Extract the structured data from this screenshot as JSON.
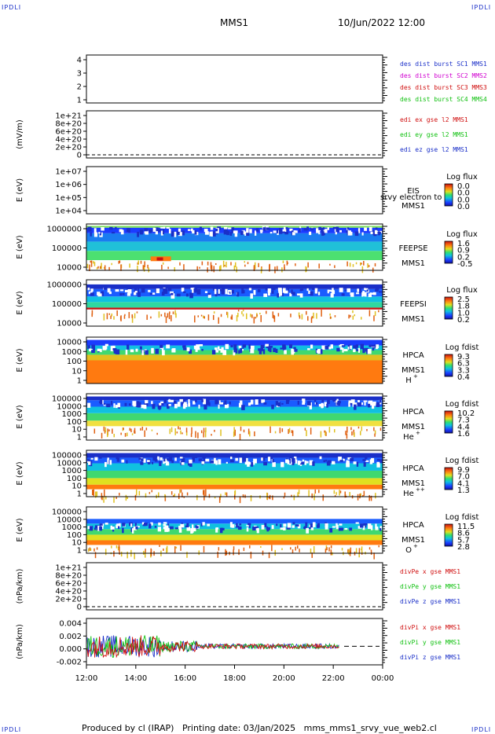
{
  "page": {
    "corner_left_top": "IPDLI",
    "corner_right_top": "IPDLI",
    "corner_left_bottom": "IPDLI",
    "corner_right_bottom": "IPDLI",
    "spacecraft": "MMS1",
    "datetime": "10/Jun/2022 12:00",
    "footer": "Produced by cl (IRAP)   Printing date: 03/Jan/2025   mms_mms1_srvy_vue_web2.cl"
  },
  "chart_data": [
    {
      "type": "line",
      "id": "p1",
      "yticks": [
        "4",
        "3",
        "2",
        "1"
      ],
      "legend": [
        {
          "text": "des dist burst SC1 MMS1",
          "color": "#1a2fc8"
        },
        {
          "text": "des dist burst SC2 MMS2",
          "color": "#d000d0"
        },
        {
          "text": "des dist burst SC3 MMS3",
          "color": "#d01010"
        },
        {
          "text": "des dist burst SC4 MMS4",
          "color": "#10c010"
        }
      ]
    },
    {
      "type": "line",
      "id": "p2",
      "ylabel": "(mV/m)",
      "yticks": [
        "1e+21",
        "8e+20",
        "6e+20",
        "4e+20",
        "2e+20",
        "0"
      ],
      "legend": [
        {
          "text": "edi ex gse l2 MMS1",
          "color": "#d01010"
        },
        {
          "text": "edi ey gse l2 MMS1",
          "color": "#10c010"
        },
        {
          "text": "edi ez gse l2 MMS1",
          "color": "#1a2fc8"
        }
      ]
    },
    {
      "type": "heatmap",
      "id": "p3",
      "ylabel": "E (eV)",
      "yticks": [
        "1e+07",
        "1e+06",
        "1e+05",
        "1e+04"
      ],
      "labels": [
        "EIS",
        "MMS1"
      ],
      "overlay": "srvy electron to",
      "cbar_title": "Log flux",
      "cbar_ticks": [
        "0.0",
        "0.0",
        "0.0",
        "0.0"
      ]
    },
    {
      "type": "heatmap",
      "id": "p4",
      "ylabel": "E (eV)",
      "yticks": [
        "1000000",
        "100000",
        "10000"
      ],
      "labels": [
        "FEEPSE",
        "MMS1"
      ],
      "cbar_title": "Log flux",
      "cbar_ticks": [
        "1.6",
        "0.9",
        "0.2",
        "-0.5"
      ]
    },
    {
      "type": "heatmap",
      "id": "p5",
      "ylabel": "E (eV)",
      "yticks": [
        "1000000",
        "100000",
        "10000"
      ],
      "labels": [
        "FEEPSI",
        "MMS1"
      ],
      "cbar_title": "Log flux",
      "cbar_ticks": [
        "2.5",
        "1.8",
        "1.0",
        "0.2"
      ]
    },
    {
      "type": "heatmap",
      "id": "p6",
      "ylabel": "E (eV)",
      "yticks": [
        "10000",
        "1000",
        "100",
        "10",
        "1"
      ],
      "labels": [
        "HPCA",
        "MMS1"
      ],
      "species": "H",
      "species_sup": "+",
      "cbar_title": "Log fdist",
      "cbar_ticks": [
        "9.3",
        "6.3",
        "3.3",
        "0.4"
      ]
    },
    {
      "type": "heatmap",
      "id": "p7",
      "ylabel": "E (eV)",
      "yticks": [
        "100000",
        "10000",
        "1000",
        "100",
        "10",
        "1"
      ],
      "labels": [
        "HPCA",
        "MMS1"
      ],
      "species": "He",
      "species_sup": "+",
      "cbar_title": "Log fdist",
      "cbar_ticks": [
        "10.2",
        "7.3",
        "4.4",
        "1.6"
      ]
    },
    {
      "type": "heatmap",
      "id": "p8",
      "ylabel": "E (eV)",
      "yticks": [
        "100000",
        "10000",
        "1000",
        "100",
        "10",
        "1"
      ],
      "labels": [
        "HPCA",
        "MMS1"
      ],
      "species": "He",
      "species_sup": "++",
      "cbar_title": "Log fdist",
      "cbar_ticks": [
        "9.9",
        "7.0",
        "4.1",
        "1.3"
      ]
    },
    {
      "type": "heatmap",
      "id": "p9",
      "ylabel": "E (eV)",
      "yticks": [
        "100000",
        "10000",
        "1000",
        "100",
        "10",
        "1"
      ],
      "labels": [
        "HPCA",
        "MMS1"
      ],
      "species": "O",
      "species_sup": "+",
      "cbar_title": "Log fdist",
      "cbar_ticks": [
        "11.5",
        "8.6",
        "5.7",
        "2.8"
      ]
    },
    {
      "type": "line",
      "id": "p10",
      "ylabel": "(nPa/km)",
      "yticks": [
        "1e+21",
        "8e+20",
        "6e+20",
        "4e+20",
        "2e+20",
        "0"
      ],
      "legend": [
        {
          "text": "divPe x gse MMS1",
          "color": "#d01010"
        },
        {
          "text": "divPe y gse MMS1",
          "color": "#10c010"
        },
        {
          "text": "divPe z gse MMS1",
          "color": "#1a2fc8"
        }
      ]
    },
    {
      "type": "line",
      "id": "p11",
      "ylabel": "(nPa/km)",
      "yticks": [
        "0.004",
        "0.002",
        "0.000",
        "-0.002"
      ],
      "ylim": [
        -0.003,
        0.0045
      ],
      "legend": [
        {
          "text": "divPi x gse MMS1",
          "color": "#d01010"
        },
        {
          "text": "divPi y gse MMS1",
          "color": "#10c010"
        },
        {
          "text": "divPi z gse MMS1",
          "color": "#1a2fc8"
        }
      ],
      "series_end_hour": 22.25
    }
  ],
  "time_axis": {
    "xlim": [
      12,
      24
    ],
    "ticks": [
      "12:00",
      "14:00",
      "16:00",
      "18:00",
      "20:00",
      "22:00",
      "00:00"
    ]
  },
  "colors": {
    "axis": "#000000",
    "legend_blue": "#1a2fc8",
    "legend_red": "#d01010",
    "legend_green": "#10c010",
    "legend_magenta": "#d000d0"
  }
}
